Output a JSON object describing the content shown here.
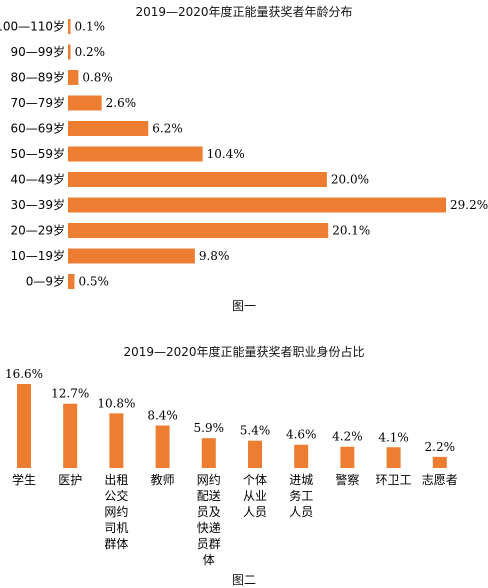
{
  "bar_color": "#ED7D31",
  "chart_data": [
    {
      "type": "bar",
      "orientation": "horizontal",
      "title": "2019—2020年度正能量获奖者年龄分布",
      "caption": "图一",
      "categories": [
        "100—110岁",
        "90—99岁",
        "80—89岁",
        "70—79岁",
        "60—69岁",
        "50—59岁",
        "40—49岁",
        "30—39岁",
        "20—29岁",
        "10—19岁",
        "0—9岁"
      ],
      "values": [
        0.1,
        0.2,
        0.8,
        2.6,
        6.2,
        10.4,
        20.0,
        29.2,
        20.1,
        9.8,
        0.5
      ],
      "value_labels": [
        "0.1%",
        "0.2%",
        "0.8%",
        "2.6%",
        "6.2%",
        "10.4%",
        "20.0%",
        "29.2%",
        "20.1%",
        "9.8%",
        "0.5%"
      ],
      "grid": false
    },
    {
      "type": "bar",
      "orientation": "vertical",
      "title": "2019—2020年度正能量获奖者职业身份占比",
      "caption": "图二",
      "categories": [
        "学生",
        "医护",
        "出租公交网约司机群体",
        "教师",
        "网约配送员及快递员群体",
        "个体从业人员",
        "进城务工人员",
        "警察",
        "环卫工",
        "志愿者"
      ],
      "values": [
        16.6,
        12.7,
        10.8,
        8.4,
        5.9,
        5.4,
        4.6,
        4.2,
        4.1,
        2.2
      ],
      "value_labels": [
        "16.6%",
        "12.7%",
        "10.8%",
        "8.4%",
        "5.9%",
        "5.4%",
        "4.6%",
        "4.2%",
        "4.1%",
        "2.2%"
      ],
      "grid": false
    }
  ]
}
